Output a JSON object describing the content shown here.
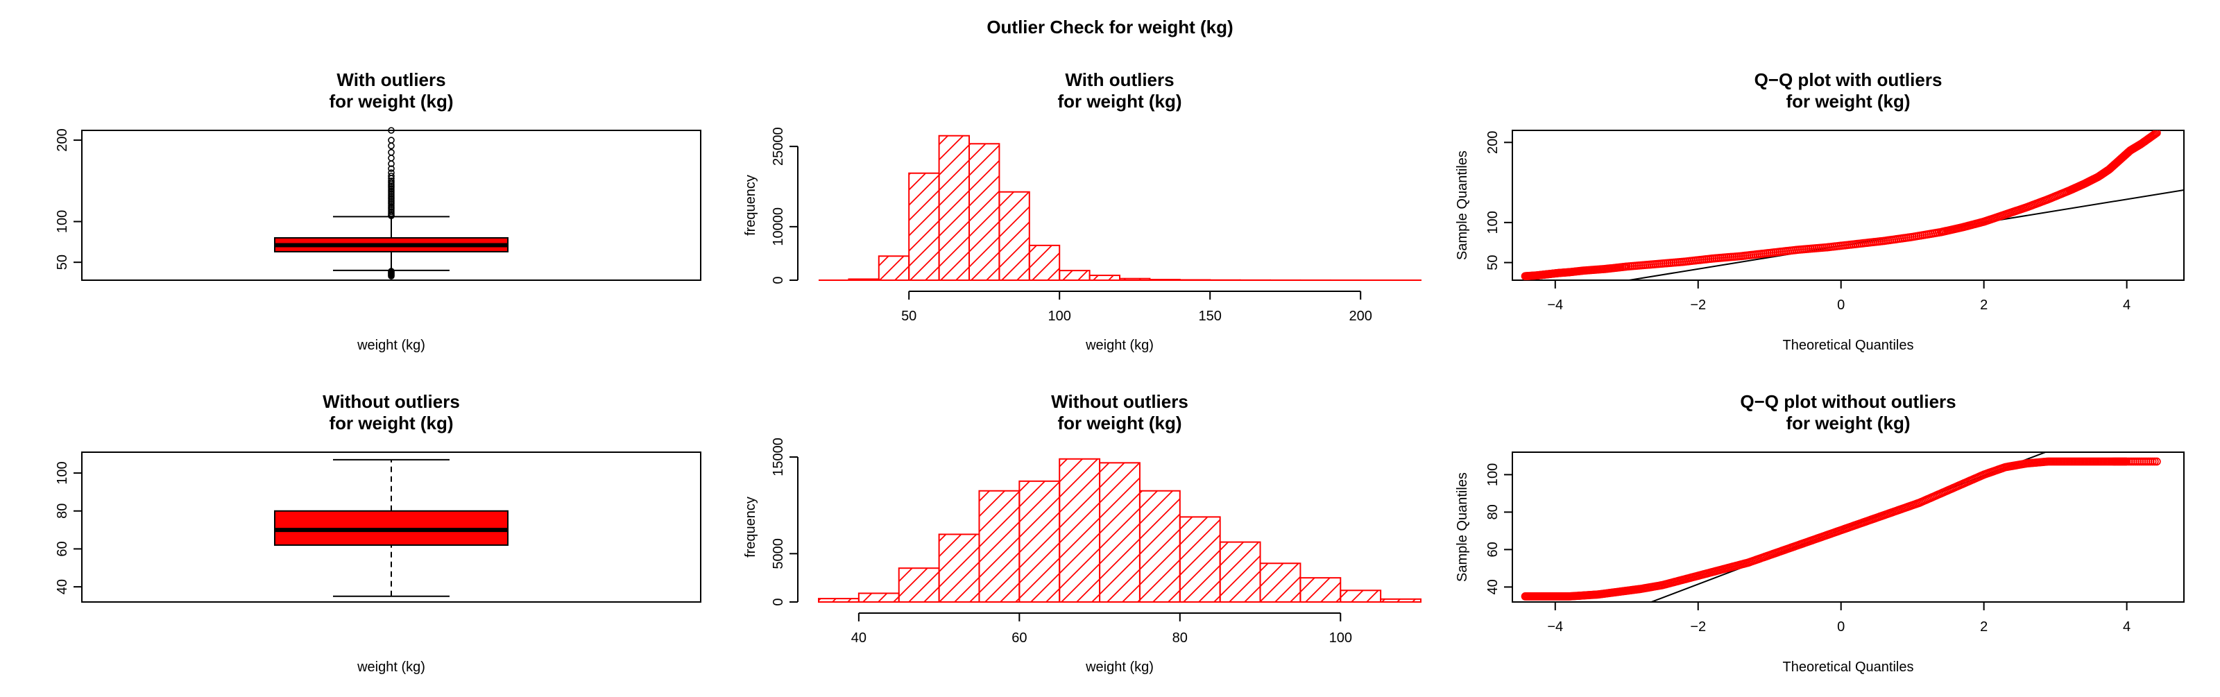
{
  "page": {
    "title": "Outlier Check for  weight (kg)"
  },
  "colors": {
    "accent": "#ff0000",
    "fill": "#ff0000",
    "line": "#000000"
  },
  "chart_data": [
    {
      "id": "box-with",
      "type": "box",
      "title_lines": [
        "With outliers",
        "for weight (kg)"
      ],
      "xlabel": "weight (kg)",
      "ylabel": "",
      "ylim": [
        28,
        212
      ],
      "yticks": [
        50,
        100,
        200
      ],
      "stats": {
        "min": 40,
        "q1": 63,
        "median": 71,
        "q3": 80,
        "max": 106
      },
      "whisker_style": "solid",
      "outliers": [
        33,
        34,
        35,
        36,
        37,
        38,
        39,
        107,
        108,
        110,
        112,
        114,
        116,
        118,
        120,
        122,
        124,
        126,
        128,
        130,
        132,
        134,
        136,
        138,
        140,
        142,
        144,
        146,
        148,
        150,
        153,
        156,
        160,
        165,
        171,
        178,
        185,
        193,
        200,
        212
      ]
    },
    {
      "id": "hist-with",
      "type": "bar",
      "title_lines": [
        "With outliers",
        "for weight (kg)"
      ],
      "xlabel": "weight (kg)",
      "ylabel": "frequency",
      "xlim": [
        20,
        220
      ],
      "ylim": [
        0,
        28000
      ],
      "xticks": [
        50,
        100,
        150,
        200
      ],
      "yticks": [
        0,
        10000,
        25000
      ],
      "bin_edges": [
        20,
        30,
        40,
        50,
        60,
        70,
        80,
        90,
        100,
        110,
        120,
        130,
        140,
        150,
        160,
        170,
        180,
        190,
        200,
        210,
        220
      ],
      "values": [
        0,
        200,
        4500,
        20000,
        27000,
        25500,
        16500,
        6500,
        1800,
        900,
        300,
        120,
        60,
        30,
        15,
        8,
        5,
        3,
        2,
        1
      ]
    },
    {
      "id": "qq-with",
      "type": "scatter",
      "title_lines": [
        "Q−Q plot with outliers",
        "for weight (kg)"
      ],
      "xlabel": "Theoretical Quantiles",
      "ylabel": "Sample Quantiles",
      "xlim": [
        -4.6,
        4.8
      ],
      "ylim": [
        28,
        215
      ],
      "xticks": [
        -4,
        -2,
        0,
        2,
        4
      ],
      "xtick_labels": [
        "−4",
        "−2",
        "0",
        "2",
        "4"
      ],
      "yticks": [
        50,
        100,
        200
      ],
      "reference_line": {
        "intercept": 71,
        "slope": 14.5
      },
      "points": [
        [
          -4.42,
          33
        ],
        [
          -4.25,
          34
        ],
        [
          -4.15,
          35
        ],
        [
          -4.05,
          36
        ],
        [
          -3.95,
          37
        ],
        [
          -3.8,
          38
        ],
        [
          -3.6,
          40
        ],
        [
          -3.3,
          42
        ],
        [
          -3.0,
          45
        ],
        [
          -2.6,
          48
        ],
        [
          -2.2,
          51
        ],
        [
          -1.8,
          55
        ],
        [
          -1.4,
          58
        ],
        [
          -1.0,
          62
        ],
        [
          -0.6,
          66
        ],
        [
          -0.2,
          69
        ],
        [
          0.2,
          73
        ],
        [
          0.6,
          77
        ],
        [
          1.0,
          82
        ],
        [
          1.4,
          88
        ],
        [
          1.7,
          94
        ],
        [
          2.0,
          101
        ],
        [
          2.3,
          110
        ],
        [
          2.6,
          119
        ],
        [
          2.9,
          129
        ],
        [
          3.2,
          140
        ],
        [
          3.4,
          148
        ],
        [
          3.6,
          157
        ],
        [
          3.75,
          166
        ],
        [
          3.85,
          174
        ],
        [
          3.95,
          182
        ],
        [
          4.05,
          190
        ],
        [
          4.2,
          198
        ],
        [
          4.42,
          212
        ]
      ]
    },
    {
      "id": "box-without",
      "type": "box",
      "title_lines": [
        "Without outliers",
        "for weight (kg)"
      ],
      "xlabel": "weight (kg)",
      "ylabel": "",
      "ylim": [
        32,
        111
      ],
      "yticks": [
        40,
        60,
        80,
        100
      ],
      "stats": {
        "min": 35,
        "q1": 62,
        "median": 70,
        "q3": 80,
        "max": 107
      },
      "whisker_style": "dashed",
      "outliers": []
    },
    {
      "id": "hist-without",
      "type": "bar",
      "title_lines": [
        "Without outliers",
        "for weight (kg)"
      ],
      "xlabel": "weight (kg)",
      "ylabel": "frequency",
      "xlim": [
        35,
        110
      ],
      "ylim": [
        0,
        15500
      ],
      "xticks": [
        40,
        60,
        80,
        100
      ],
      "yticks": [
        0,
        5000,
        15000
      ],
      "bin_edges": [
        35,
        40,
        45,
        50,
        55,
        60,
        65,
        70,
        75,
        80,
        85,
        90,
        95,
        100,
        105,
        110
      ],
      "values": [
        350,
        900,
        3500,
        7000,
        11500,
        12500,
        14800,
        14400,
        11500,
        8800,
        6200,
        4000,
        2500,
        1200,
        300
      ]
    },
    {
      "id": "qq-without",
      "type": "scatter",
      "title_lines": [
        "Q−Q plot without outliers",
        "for weight (kg)"
      ],
      "xlabel": "Theoretical Quantiles",
      "ylabel": "Sample Quantiles",
      "xlim": [
        -4.6,
        4.8
      ],
      "ylim": [
        32,
        112
      ],
      "xticks": [
        -4,
        -2,
        0,
        2,
        4
      ],
      "xtick_labels": [
        "−4",
        "−2",
        "0",
        "2",
        "4"
      ],
      "yticks": [
        40,
        60,
        80,
        100
      ],
      "reference_line": {
        "intercept": 70.5,
        "slope": 14.5
      },
      "points": [
        [
          -4.42,
          35
        ],
        [
          -4.2,
          35
        ],
        [
          -4.0,
          35
        ],
        [
          -3.8,
          35
        ],
        [
          -3.6,
          35.5
        ],
        [
          -3.4,
          36
        ],
        [
          -3.2,
          37
        ],
        [
          -3.0,
          38
        ],
        [
          -2.8,
          39
        ],
        [
          -2.5,
          41
        ],
        [
          -2.2,
          44
        ],
        [
          -1.9,
          47
        ],
        [
          -1.6,
          50
        ],
        [
          -1.3,
          53
        ],
        [
          -1.0,
          57
        ],
        [
          -0.7,
          61
        ],
        [
          -0.4,
          65
        ],
        [
          -0.1,
          69
        ],
        [
          0.2,
          73
        ],
        [
          0.5,
          77
        ],
        [
          0.8,
          81
        ],
        [
          1.1,
          85
        ],
        [
          1.4,
          90
        ],
        [
          1.7,
          95
        ],
        [
          2.0,
          100
        ],
        [
          2.3,
          104
        ],
        [
          2.6,
          106
        ],
        [
          2.9,
          107
        ],
        [
          3.2,
          107
        ],
        [
          3.5,
          107
        ],
        [
          3.8,
          107
        ],
        [
          4.0,
          107
        ],
        [
          4.42,
          107
        ]
      ]
    }
  ]
}
